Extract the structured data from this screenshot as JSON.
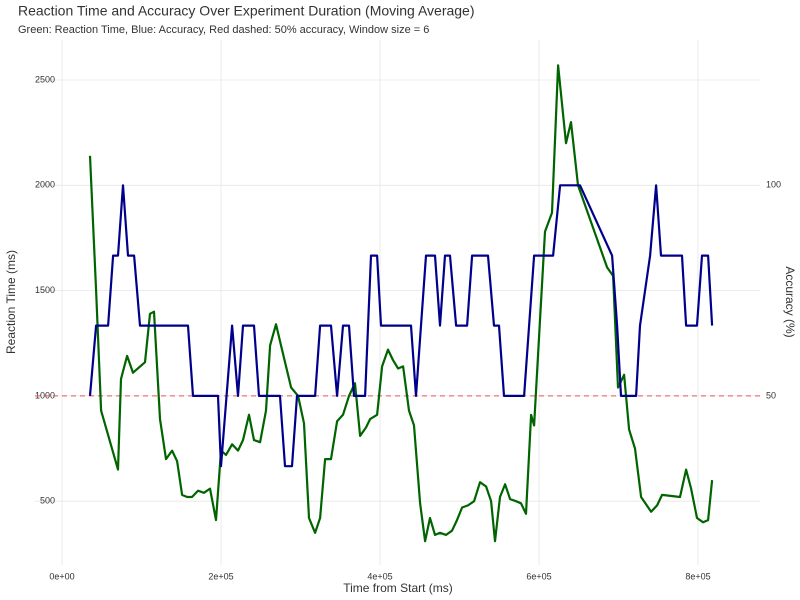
{
  "chart_data": {
    "type": "line",
    "title": "Reaction Time and Accuracy Over Experiment Duration (Moving Average)",
    "subtitle": "Green: Reaction Time, Blue: Accuracy, Red dashed: 50% accuracy, Window size = 6",
    "x_label": "Time from Start (ms)",
    "y_label": "Reaction Time (ms)",
    "y2_label": "Accuracy (%)",
    "xlim": [
      -34000,
      878000
    ],
    "xticks": [
      {
        "value": 0,
        "label": "0e+00"
      },
      {
        "value": 200000,
        "label": "2e+05"
      },
      {
        "value": 400000,
        "label": "4e+05"
      },
      {
        "value": 600000,
        "label": "6e+05"
      },
      {
        "value": 800000,
        "label": "8e+05"
      }
    ],
    "ylim": [
      197,
      2690
    ],
    "yticks": [
      500,
      1000,
      1500,
      2000,
      2500
    ],
    "y2lim": [
      9.85,
      134.5
    ],
    "y2ticks": [
      50,
      100
    ],
    "grid": true,
    "y_color": "#006400",
    "y2_color": "#00008b",
    "reference_line": {
      "value": 1000,
      "color": "#e8545c",
      "dashed": true
    },
    "series": [
      {
        "color": "#006400",
        "x": [
          35200,
          42800,
          49100,
          70400,
          74200,
          81800,
          89300,
          104400,
          110700,
          115700,
          123300,
          130800,
          138400,
          144700,
          151000,
          157300,
          163500,
          171100,
          178600,
          186200,
          193700,
          200000,
          206300,
          213900,
          221400,
          227700,
          235200,
          241500,
          249100,
          256600,
          261700,
          269200,
          275500,
          288100,
          296900,
          304400,
          310700,
          318300,
          324600,
          330900,
          338400,
          346000,
          353500,
          361000,
          368600,
          374900,
          382400,
          387500,
          396300,
          402600,
          410100,
          416400,
          422700,
          429000,
          436500,
          442800,
          450400,
          456700,
          462900,
          469200,
          475500,
          483100,
          490600,
          496900,
          503200,
          510700,
          518300,
          525800,
          533400,
          539700,
          544700,
          551000,
          557300,
          563600,
          571100,
          577400,
          583700,
          590000,
          593800,
          601300,
          607600,
          616400,
          624000,
          634000,
          640300,
          649100,
          685600,
          693200,
          699400,
          707000,
          713300,
          720800,
          728400,
          741000,
          748500,
          754800,
          777400,
          785000,
          791300,
          798800,
          806400,
          812700,
          817700
        ],
        "values": [
          2140,
          1500,
          930,
          650,
          1080,
          1190,
          1110,
          1160,
          1390,
          1400,
          890,
          700,
          740,
          690,
          530,
          520,
          520,
          550,
          540,
          560,
          410,
          740,
          720,
          770,
          740,
          790,
          910,
          790,
          780,
          930,
          1240,
          1340,
          1240,
          1040,
          1000,
          870,
          420,
          350,
          420,
          700,
          700,
          880,
          910,
          1000,
          1060,
          810,
          850,
          890,
          910,
          1140,
          1220,
          1170,
          1130,
          1140,
          930,
          860,
          490,
          310,
          420,
          340,
          350,
          340,
          360,
          410,
          470,
          480,
          500,
          590,
          570,
          500,
          310,
          520,
          580,
          510,
          500,
          490,
          440,
          910,
          860,
          1360,
          1780,
          1870,
          2570,
          2200,
          2300,
          2000,
          1610,
          1570,
          1040,
          1100,
          840,
          750,
          520,
          450,
          480,
          530,
          520,
          650,
          560,
          420,
          400,
          410,
          600
        ]
      },
      {
        "color": "#00008b",
        "axis": "y2",
        "x": [
          35200,
          42800,
          57900,
          64200,
          70400,
          76700,
          83000,
          90600,
          98100,
          158500,
          164800,
          196200,
          200000,
          213900,
          221400,
          227700,
          241500,
          247800,
          274200,
          280500,
          289300,
          295600,
          318300,
          324600,
          338400,
          346000,
          353500,
          361000,
          367300,
          381200,
          388700,
          396300,
          401300,
          439000,
          445300,
          451600,
          457900,
          469200,
          475500,
          481800,
          488100,
          495700,
          509500,
          515800,
          535900,
          543400,
          549700,
          556000,
          581200,
          587500,
          593800,
          617700,
          626500,
          651600,
          691900,
          698200,
          703200,
          722100,
          727100,
          739700,
          747300,
          753500,
          779900,
          785000,
          798800,
          805100,
          812700,
          817700
        ],
        "values": [
          50,
          66.7,
          66.7,
          83.3,
          83.3,
          100,
          83.3,
          83.3,
          66.7,
          66.7,
          50,
          50,
          33.3,
          66.7,
          50,
          66.7,
          66.7,
          50,
          50,
          33.3,
          33.3,
          50,
          50,
          66.7,
          66.7,
          50,
          66.7,
          66.7,
          50,
          50,
          83.3,
          83.3,
          66.7,
          66.7,
          50,
          66.7,
          83.3,
          83.3,
          66.7,
          83.3,
          83.3,
          66.7,
          66.7,
          83.3,
          83.3,
          66.7,
          66.7,
          50,
          50,
          66.7,
          83.3,
          83.3,
          100,
          100,
          83.3,
          66.7,
          50,
          50,
          66.7,
          83.3,
          100,
          83.3,
          83.3,
          66.7,
          66.7,
          83.3,
          83.3,
          66.7
        ]
      }
    ]
  }
}
